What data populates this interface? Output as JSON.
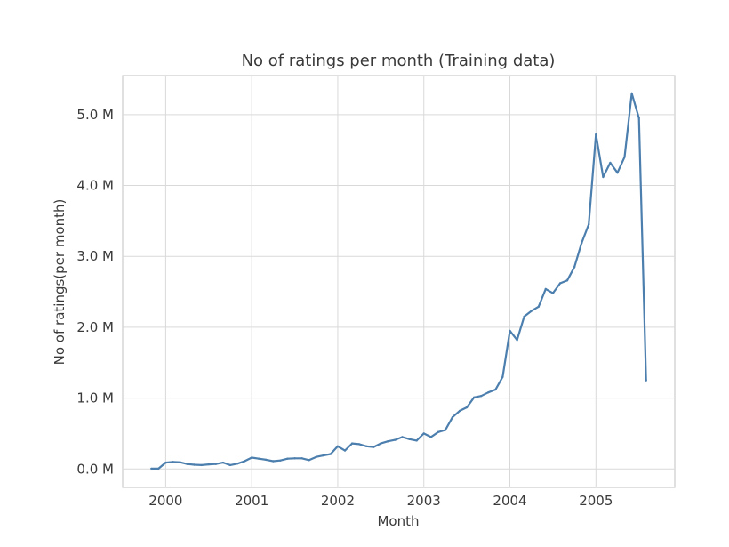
{
  "chart_data": {
    "type": "line",
    "title": "No of ratings per month (Training data)",
    "xlabel": "Month",
    "ylabel": "No of ratings(per month)",
    "grid": true,
    "xlim": [
      "1999-07",
      "2005-12"
    ],
    "ylim": [
      -260000,
      5550000
    ],
    "x_ticks": [
      {
        "value": "2000-01",
        "label": "2000"
      },
      {
        "value": "2001-01",
        "label": "2001"
      },
      {
        "value": "2002-01",
        "label": "2002"
      },
      {
        "value": "2003-01",
        "label": "2003"
      },
      {
        "value": "2004-01",
        "label": "2004"
      },
      {
        "value": "2005-01",
        "label": "2005"
      }
    ],
    "y_ticks": [
      {
        "value": 0,
        "label": "0.0 M"
      },
      {
        "value": 1000000,
        "label": "1.0 M"
      },
      {
        "value": 2000000,
        "label": "2.0 M"
      },
      {
        "value": 3000000,
        "label": "3.0 M"
      },
      {
        "value": 4000000,
        "label": "4.0 M"
      },
      {
        "value": 5000000,
        "label": "5.0 M"
      }
    ],
    "series": [
      {
        "color": "#4c7fae",
        "x": [
          "1999-11",
          "1999-12",
          "2000-01",
          "2000-02",
          "2000-03",
          "2000-04",
          "2000-05",
          "2000-06",
          "2000-07",
          "2000-08",
          "2000-09",
          "2000-10",
          "2000-11",
          "2000-12",
          "2001-01",
          "2001-02",
          "2001-03",
          "2001-04",
          "2001-05",
          "2001-06",
          "2001-07",
          "2001-08",
          "2001-09",
          "2001-10",
          "2001-11",
          "2001-12",
          "2002-01",
          "2002-02",
          "2002-03",
          "2002-04",
          "2002-05",
          "2002-06",
          "2002-07",
          "2002-08",
          "2002-09",
          "2002-10",
          "2002-11",
          "2002-12",
          "2003-01",
          "2003-02",
          "2003-03",
          "2003-04",
          "2003-05",
          "2003-06",
          "2003-07",
          "2003-08",
          "2003-09",
          "2003-10",
          "2003-11",
          "2003-12",
          "2004-01",
          "2004-02",
          "2004-03",
          "2004-04",
          "2004-05",
          "2004-06",
          "2004-07",
          "2004-08",
          "2004-09",
          "2004-10",
          "2004-11",
          "2004-12",
          "2005-01",
          "2005-02",
          "2005-03",
          "2005-04",
          "2005-05",
          "2005-06",
          "2005-07",
          "2005-08"
        ],
        "values": [
          5000,
          5000,
          90000,
          100000,
          95000,
          70000,
          60000,
          55000,
          65000,
          70000,
          90000,
          55000,
          75000,
          110000,
          160000,
          145000,
          130000,
          110000,
          120000,
          145000,
          150000,
          150000,
          125000,
          170000,
          190000,
          210000,
          320000,
          260000,
          360000,
          350000,
          320000,
          310000,
          360000,
          390000,
          410000,
          450000,
          420000,
          400000,
          500000,
          450000,
          520000,
          550000,
          730000,
          820000,
          870000,
          1010000,
          1030000,
          1080000,
          1120000,
          1300000,
          1950000,
          1820000,
          2150000,
          2230000,
          2290000,
          2540000,
          2480000,
          2620000,
          2660000,
          2850000,
          3190000,
          3450000,
          4720000,
          4120000,
          4320000,
          4180000,
          4400000,
          5300000,
          4950000,
          1250000
        ]
      }
    ]
  }
}
